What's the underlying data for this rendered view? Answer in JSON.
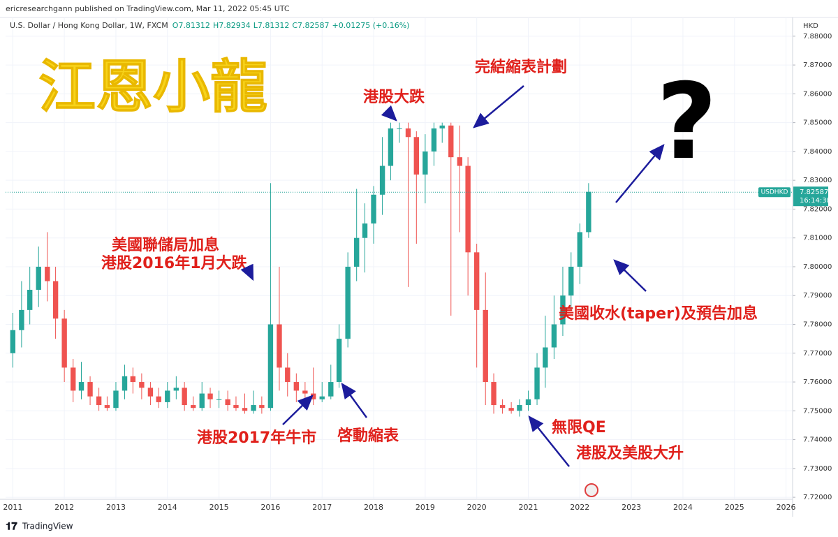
{
  "header": {
    "publisher": "ericresearchgann published on TradingView.com, Mar 11, 2022 05:45 UTC",
    "symbol": "U.S. Dollar / Hong Kong Dollar, 1W, FXCM",
    "ohlc": [
      "O7.81312",
      "H7.82934",
      "L7.81312",
      "C7.82587"
    ],
    "change": "+0.01275 (+0.16%)"
  },
  "title": "江恩小龍",
  "annotations": [
    "港股大跌",
    "完結縮表計劃",
    "美國聯儲局加息",
    "港股2016年1月大跌",
    "港股2017年牛市",
    "啓動縮表",
    "無限QE",
    "港股及美股大升",
    "美國收水(taper)及預告加息",
    "?"
  ],
  "footer": "TradingView",
  "chart_data": {
    "type": "candlestick",
    "currency": "HKD",
    "x": [
      2011.0,
      2011.17,
      2011.33,
      2011.5,
      2011.67,
      2011.83,
      2012.0,
      2012.17,
      2012.33,
      2012.5,
      2012.67,
      2012.83,
      2013.0,
      2013.17,
      2013.33,
      2013.5,
      2013.67,
      2013.83,
      2014.0,
      2014.17,
      2014.33,
      2014.5,
      2014.67,
      2014.83,
      2015.0,
      2015.17,
      2015.33,
      2015.5,
      2015.67,
      2015.83,
      2016.0,
      2016.17,
      2016.33,
      2016.5,
      2016.67,
      2016.83,
      2017.0,
      2017.17,
      2017.33,
      2017.5,
      2017.67,
      2017.83,
      2018.0,
      2018.17,
      2018.33,
      2018.5,
      2018.67,
      2018.83,
      2019.0,
      2019.17,
      2019.33,
      2019.5,
      2019.67,
      2019.83,
      2020.0,
      2020.17,
      2020.33,
      2020.5,
      2020.67,
      2020.83,
      2021.0,
      2021.17,
      2021.33,
      2021.5,
      2021.67,
      2021.83,
      2022.0,
      2022.17
    ],
    "open": [
      7.77,
      7.778,
      7.785,
      7.792,
      7.8,
      7.795,
      7.782,
      7.765,
      7.757,
      7.76,
      7.755,
      7.752,
      7.751,
      7.757,
      7.762,
      7.76,
      7.758,
      7.755,
      7.753,
      7.757,
      7.758,
      7.752,
      7.751,
      7.756,
      7.754,
      7.754,
      7.752,
      7.751,
      7.75,
      7.752,
      7.751,
      7.78,
      7.765,
      7.76,
      7.757,
      7.756,
      7.754,
      7.755,
      7.76,
      7.775,
      7.8,
      7.81,
      7.815,
      7.825,
      7.835,
      7.848,
      7.848,
      7.845,
      7.832,
      7.84,
      7.848,
      7.849,
      7.838,
      7.835,
      7.805,
      7.785,
      7.76,
      7.752,
      7.751,
      7.75,
      7.752,
      7.754,
      7.765,
      7.772,
      7.78,
      7.79,
      7.8,
      7.812
    ],
    "high": [
      7.784,
      7.795,
      7.8,
      7.807,
      7.812,
      7.8,
      7.785,
      7.768,
      7.767,
      7.762,
      7.758,
      7.755,
      7.76,
      7.766,
      7.765,
      7.763,
      7.76,
      7.758,
      7.76,
      7.762,
      7.76,
      7.755,
      7.76,
      7.758,
      7.757,
      7.757,
      7.755,
      7.756,
      7.757,
      7.755,
      7.829,
      7.8,
      7.77,
      7.763,
      7.76,
      7.765,
      7.76,
      7.766,
      7.78,
      7.805,
      7.827,
      7.822,
      7.828,
      7.845,
      7.85,
      7.85,
      7.85,
      7.847,
      7.846,
      7.85,
      7.85,
      7.85,
      7.849,
      7.838,
      7.808,
      7.798,
      7.763,
      7.754,
      7.753,
      7.754,
      7.757,
      7.77,
      7.783,
      7.79,
      7.8,
      7.805,
      7.815,
      7.829
    ],
    "low": [
      7.765,
      7.772,
      7.78,
      7.786,
      7.788,
      7.775,
      7.76,
      7.753,
      7.754,
      7.752,
      7.75,
      7.75,
      7.75,
      7.754,
      7.756,
      7.754,
      7.752,
      7.751,
      7.751,
      7.754,
      7.75,
      7.75,
      7.75,
      7.751,
      7.751,
      7.75,
      7.75,
      7.749,
      7.749,
      7.749,
      7.75,
      7.757,
      7.755,
      7.753,
      7.753,
      7.752,
      7.753,
      7.754,
      7.758,
      7.772,
      7.795,
      7.798,
      7.808,
      7.818,
      7.83,
      7.843,
      7.793,
      7.808,
      7.822,
      7.835,
      7.843,
      7.783,
      7.812,
      7.79,
      7.765,
      7.752,
      7.749,
      7.749,
      7.749,
      7.748,
      7.75,
      7.752,
      7.758,
      7.768,
      7.776,
      7.785,
      7.794,
      7.81
    ],
    "close": [
      7.778,
      7.785,
      7.792,
      7.8,
      7.795,
      7.782,
      7.765,
      7.757,
      7.76,
      7.755,
      7.752,
      7.751,
      7.757,
      7.762,
      7.76,
      7.758,
      7.755,
      7.753,
      7.757,
      7.758,
      7.752,
      7.751,
      7.756,
      7.754,
      7.754,
      7.752,
      7.751,
      7.75,
      7.752,
      7.751,
      7.78,
      7.765,
      7.76,
      7.757,
      7.756,
      7.754,
      7.755,
      7.76,
      7.775,
      7.8,
      7.81,
      7.815,
      7.825,
      7.835,
      7.848,
      7.848,
      7.845,
      7.832,
      7.84,
      7.848,
      7.849,
      7.838,
      7.835,
      7.805,
      7.785,
      7.76,
      7.752,
      7.751,
      7.75,
      7.752,
      7.754,
      7.765,
      7.772,
      7.78,
      7.79,
      7.8,
      7.812,
      7.826
    ],
    "up_color": "#26a69a",
    "down_color": "#ef5350",
    "xlim": [
      2010.86,
      2026.06
    ],
    "xticks": [
      2011,
      2012,
      2013,
      2014,
      2015,
      2016,
      2017,
      2018,
      2019,
      2020,
      2021,
      2022,
      2023,
      2024,
      2025,
      2026
    ],
    "ylim": [
      7.7193,
      7.8865
    ],
    "yticks": [
      {
        "value": 7.72,
        "label": "7.72000"
      },
      {
        "value": 7.73,
        "label": "7.73000"
      },
      {
        "value": 7.74,
        "label": "7.74000"
      },
      {
        "value": 7.75,
        "label": "7.75000"
      },
      {
        "value": 7.76,
        "label": "7.76000"
      },
      {
        "value": 7.77,
        "label": "7.77000"
      },
      {
        "value": 7.78,
        "label": "7.78000"
      },
      {
        "value": 7.79,
        "label": "7.79000"
      },
      {
        "value": 7.8,
        "label": "7.80000"
      },
      {
        "value": 7.81,
        "label": "7.81000"
      },
      {
        "value": 7.82,
        "label": "7.82000"
      },
      {
        "value": 7.83,
        "label": "7.83000"
      },
      {
        "value": 7.84,
        "label": "7.84000"
      },
      {
        "value": 7.85,
        "label": "7.85000"
      },
      {
        "value": 7.86,
        "label": "7.86000"
      },
      {
        "value": 7.87,
        "label": "7.87000"
      },
      {
        "value": 7.88,
        "label": "7.88000"
      }
    ],
    "last_price": {
      "symbol": "USDHKD",
      "value": 7.82587,
      "label": "7.82587",
      "countdown": "16:14:38",
      "color": "#26a69a"
    }
  }
}
